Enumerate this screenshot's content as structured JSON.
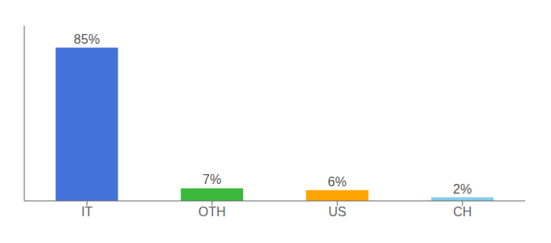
{
  "chart_data": {
    "type": "bar",
    "categories": [
      "IT",
      "OTH",
      "US",
      "CH"
    ],
    "values": [
      85,
      7,
      6,
      2
    ],
    "value_labels": [
      "85%",
      "7%",
      "6%",
      "2%"
    ],
    "colors": [
      "#4472DB",
      "#3CB93C",
      "#FFA500",
      "#87CEEB"
    ],
    "ylim": [
      0,
      97
    ],
    "grid": false,
    "data_labels": true,
    "tick_labels": "x"
  }
}
